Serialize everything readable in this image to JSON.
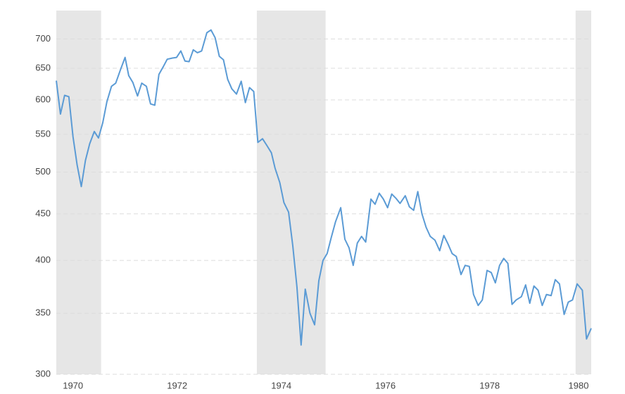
{
  "chart_data": {
    "type": "line",
    "color": "#5b9bd5",
    "log_y": true,
    "grid": true,
    "shaded_ranges": [
      [
        1969.68,
        1970.54
      ],
      [
        1973.53,
        1974.85
      ],
      [
        1979.65,
        1979.95
      ]
    ],
    "xlim": [
      1969.68,
      1979.95
    ],
    "xticks": [
      1970,
      1972,
      1974,
      1976,
      1978,
      1980
    ],
    "ylim": [
      300,
      752
    ],
    "yticks": [
      300,
      350,
      400,
      450,
      500,
      550,
      600,
      650,
      700
    ],
    "x": [
      1969.68,
      1969.76,
      1969.84,
      1969.92,
      1970.0,
      1970.08,
      1970.16,
      1970.24,
      1970.32,
      1970.41,
      1970.49,
      1970.57,
      1970.65,
      1970.74,
      1970.82,
      1970.91,
      1971.0,
      1971.07,
      1971.15,
      1971.24,
      1971.32,
      1971.41,
      1971.49,
      1971.57,
      1971.65,
      1971.73,
      1971.81,
      1971.91,
      1971.99,
      1972.07,
      1972.15,
      1972.23,
      1972.31,
      1972.39,
      1972.47,
      1972.57,
      1972.65,
      1972.73,
      1972.81,
      1972.89,
      1972.97,
      1973.05,
      1973.14,
      1973.23,
      1973.31,
      1973.39,
      1973.47,
      1973.55,
      1973.64,
      1973.72,
      1973.81,
      1973.88,
      1973.97,
      1974.05,
      1974.14,
      1974.22,
      1974.3,
      1974.38,
      1974.46,
      1974.55,
      1974.64,
      1974.72,
      1974.8,
      1974.88,
      1974.96,
      1975.04,
      1975.14,
      1975.22,
      1975.3,
      1975.38,
      1975.46,
      1975.54,
      1975.62,
      1975.72,
      1975.8,
      1975.88,
      1975.96,
      1976.04,
      1976.12,
      1976.2,
      1976.28,
      1976.38,
      1976.46,
      1976.54,
      1976.62,
      1976.7,
      1976.78,
      1976.86,
      1976.95,
      1977.04,
      1977.12,
      1977.2,
      1977.28,
      1977.36,
      1977.45,
      1977.53,
      1977.61,
      1977.69,
      1977.78,
      1977.86,
      1977.95,
      1978.03,
      1978.11,
      1978.19,
      1978.27,
      1978.35,
      1978.43,
      1978.51,
      1978.61,
      1978.69,
      1978.77,
      1978.85,
      1978.93,
      1979.01,
      1979.09,
      1979.18,
      1979.26,
      1979.34,
      1979.43,
      1979.51,
      1979.59,
      1979.68,
      1979.78,
      1979.86,
      1979.95
    ],
    "values": [
      630,
      579,
      607,
      605,
      547,
      509,
      482,
      515,
      537,
      554,
      545,
      566,
      597,
      621,
      626,
      647,
      668,
      638,
      627,
      606,
      626,
      621,
      594,
      592,
      640,
      652,
      665,
      667,
      668,
      679,
      662,
      661,
      681,
      676,
      679,
      711,
      716,
      702,
      670,
      664,
      632,
      617,
      609,
      629,
      596,
      619,
      613,
      539,
      544,
      535,
      525,
      505,
      487,
      463,
      452,
      415,
      374,
      323,
      372,
      350,
      340,
      380,
      400,
      407,
      424,
      441,
      457,
      422,
      413,
      395,
      418,
      425,
      419,
      467,
      461,
      474,
      467,
      457,
      473,
      468,
      462,
      471,
      458,
      454,
      476,
      450,
      435,
      425,
      421,
      410,
      426,
      417,
      407,
      404,
      386,
      395,
      394,
      367,
      357,
      362,
      390,
      388,
      378,
      395,
      402,
      397,
      358,
      362,
      365,
      376,
      359,
      375,
      371,
      357,
      367,
      366,
      381,
      377,
      349,
      360,
      362,
      377,
      371,
      328,
      337
    ]
  }
}
